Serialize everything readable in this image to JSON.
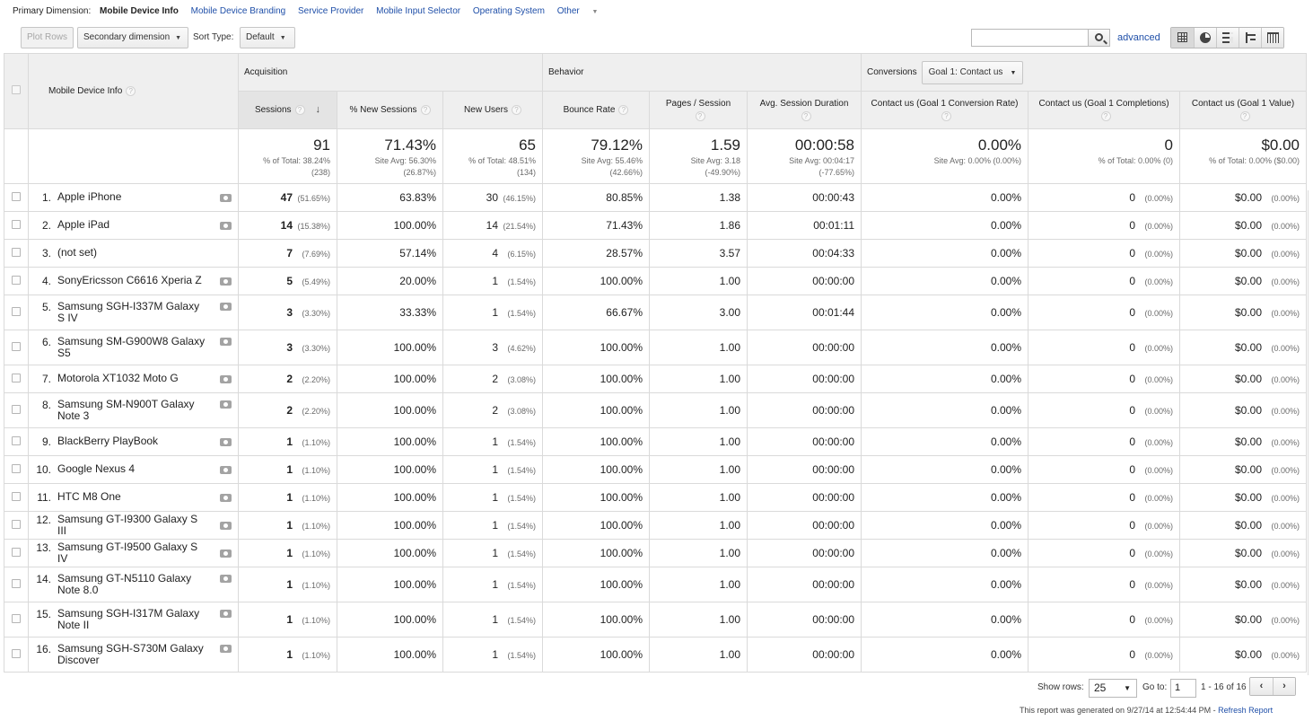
{
  "primary_dimension": {
    "label": "Primary Dimension:",
    "current": "Mobile Device Info",
    "options": [
      "Mobile Device Branding",
      "Service Provider",
      "Mobile Input Selector",
      "Operating System",
      "Other"
    ]
  },
  "toolbar": {
    "plot_rows": "Plot Rows",
    "secondary_dimension": "Secondary dimension",
    "sort_type_label": "Sort Type:",
    "sort_type_value": "Default",
    "search_value": "",
    "advanced": "advanced",
    "view_icons": [
      "table-view-icon",
      "pie-view-icon",
      "performance-view-icon",
      "comparison-view-icon",
      "pivot-view-icon"
    ]
  },
  "headers": {
    "dimension": "Mobile Device Info",
    "groups": {
      "acquisition": "Acquisition",
      "behavior": "Behavior",
      "conversions": "Conversions",
      "goal_select": "Goal 1: Contact us"
    },
    "columns": [
      "Sessions",
      "% New Sessions",
      "New Users",
      "Bounce Rate",
      "Pages / Session",
      "Avg. Session Duration",
      "Contact us (Goal 1 Conversion Rate)",
      "Contact us (Goal 1 Completions)",
      "Contact us (Goal 1 Value)"
    ]
  },
  "totals": [
    {
      "value": "91",
      "line1": "% of Total: 38.24%",
      "line2": "(238)"
    },
    {
      "value": "71.43%",
      "line1": "Site Avg: 56.30%",
      "line2": "(26.87%)"
    },
    {
      "value": "65",
      "line1": "% of Total: 48.51%",
      "line2": "(134)"
    },
    {
      "value": "79.12%",
      "line1": "Site Avg: 55.46%",
      "line2": "(42.66%)"
    },
    {
      "value": "1.59",
      "line1": "Site Avg: 3.18",
      "line2": "(-49.90%)"
    },
    {
      "value": "00:00:58",
      "line1": "Site Avg: 00:04:17",
      "line2": "(-77.65%)"
    },
    {
      "value": "0.00%",
      "line1": "Site Avg: 0.00% (0.00%)",
      "line2": ""
    },
    {
      "value": "0",
      "line1": "% of Total: 0.00% (0)",
      "line2": ""
    },
    {
      "value": "$0.00",
      "line1": "% of Total: 0.00% ($0.00)",
      "line2": ""
    }
  ],
  "rows": [
    {
      "idx": "1.",
      "name": "Apple iPhone",
      "cam": true,
      "sessions": "47",
      "sessions_pct": "(51.65%)",
      "new_sessions": "63.83%",
      "new_users": "30",
      "new_users_pct": "(46.15%)",
      "bounce": "80.85%",
      "pages": "1.38",
      "duration": "00:00:43",
      "conv_rate": "0.00%",
      "completions": "0",
      "completions_pct": "(0.00%)",
      "value": "$0.00",
      "value_pct": "(0.00%)"
    },
    {
      "idx": "2.",
      "name": "Apple iPad",
      "cam": true,
      "sessions": "14",
      "sessions_pct": "(15.38%)",
      "new_sessions": "100.00%",
      "new_users": "14",
      "new_users_pct": "(21.54%)",
      "bounce": "71.43%",
      "pages": "1.86",
      "duration": "00:01:11",
      "conv_rate": "0.00%",
      "completions": "0",
      "completions_pct": "(0.00%)",
      "value": "$0.00",
      "value_pct": "(0.00%)"
    },
    {
      "idx": "3.",
      "name": "(not set)",
      "cam": false,
      "sessions": "7",
      "sessions_pct": "(7.69%)",
      "new_sessions": "57.14%",
      "new_users": "4",
      "new_users_pct": "(6.15%)",
      "bounce": "28.57%",
      "pages": "3.57",
      "duration": "00:04:33",
      "conv_rate": "0.00%",
      "completions": "0",
      "completions_pct": "(0.00%)",
      "value": "$0.00",
      "value_pct": "(0.00%)"
    },
    {
      "idx": "4.",
      "name": "SonyEricsson C6616 Xperia Z",
      "cam": true,
      "sessions": "5",
      "sessions_pct": "(5.49%)",
      "new_sessions": "20.00%",
      "new_users": "1",
      "new_users_pct": "(1.54%)",
      "bounce": "100.00%",
      "pages": "1.00",
      "duration": "00:00:00",
      "conv_rate": "0.00%",
      "completions": "0",
      "completions_pct": "(0.00%)",
      "value": "$0.00",
      "value_pct": "(0.00%)"
    },
    {
      "idx": "5.",
      "name": "Samsung SGH-I337M Galaxy S IV",
      "cam": true,
      "sessions": "3",
      "sessions_pct": "(3.30%)",
      "new_sessions": "33.33%",
      "new_users": "1",
      "new_users_pct": "(1.54%)",
      "bounce": "66.67%",
      "pages": "3.00",
      "duration": "00:01:44",
      "conv_rate": "0.00%",
      "completions": "0",
      "completions_pct": "(0.00%)",
      "value": "$0.00",
      "value_pct": "(0.00%)"
    },
    {
      "idx": "6.",
      "name": "Samsung SM-G900W8 Galaxy S5",
      "cam": true,
      "sessions": "3",
      "sessions_pct": "(3.30%)",
      "new_sessions": "100.00%",
      "new_users": "3",
      "new_users_pct": "(4.62%)",
      "bounce": "100.00%",
      "pages": "1.00",
      "duration": "00:00:00",
      "conv_rate": "0.00%",
      "completions": "0",
      "completions_pct": "(0.00%)",
      "value": "$0.00",
      "value_pct": "(0.00%)"
    },
    {
      "idx": "7.",
      "name": "Motorola XT1032 Moto G",
      "cam": true,
      "sessions": "2",
      "sessions_pct": "(2.20%)",
      "new_sessions": "100.00%",
      "new_users": "2",
      "new_users_pct": "(3.08%)",
      "bounce": "100.00%",
      "pages": "1.00",
      "duration": "00:00:00",
      "conv_rate": "0.00%",
      "completions": "0",
      "completions_pct": "(0.00%)",
      "value": "$0.00",
      "value_pct": "(0.00%)"
    },
    {
      "idx": "8.",
      "name": "Samsung SM-N900T Galaxy Note 3",
      "cam": true,
      "sessions": "2",
      "sessions_pct": "(2.20%)",
      "new_sessions": "100.00%",
      "new_users": "2",
      "new_users_pct": "(3.08%)",
      "bounce": "100.00%",
      "pages": "1.00",
      "duration": "00:00:00",
      "conv_rate": "0.00%",
      "completions": "0",
      "completions_pct": "(0.00%)",
      "value": "$0.00",
      "value_pct": "(0.00%)"
    },
    {
      "idx": "9.",
      "name": "BlackBerry PlayBook",
      "cam": true,
      "sessions": "1",
      "sessions_pct": "(1.10%)",
      "new_sessions": "100.00%",
      "new_users": "1",
      "new_users_pct": "(1.54%)",
      "bounce": "100.00%",
      "pages": "1.00",
      "duration": "00:00:00",
      "conv_rate": "0.00%",
      "completions": "0",
      "completions_pct": "(0.00%)",
      "value": "$0.00",
      "value_pct": "(0.00%)"
    },
    {
      "idx": "10.",
      "name": "Google Nexus 4",
      "cam": true,
      "sessions": "1",
      "sessions_pct": "(1.10%)",
      "new_sessions": "100.00%",
      "new_users": "1",
      "new_users_pct": "(1.54%)",
      "bounce": "100.00%",
      "pages": "1.00",
      "duration": "00:00:00",
      "conv_rate": "0.00%",
      "completions": "0",
      "completions_pct": "(0.00%)",
      "value": "$0.00",
      "value_pct": "(0.00%)"
    },
    {
      "idx": "11.",
      "name": "HTC M8 One",
      "cam": true,
      "sessions": "1",
      "sessions_pct": "(1.10%)",
      "new_sessions": "100.00%",
      "new_users": "1",
      "new_users_pct": "(1.54%)",
      "bounce": "100.00%",
      "pages": "1.00",
      "duration": "00:00:00",
      "conv_rate": "0.00%",
      "completions": "0",
      "completions_pct": "(0.00%)",
      "value": "$0.00",
      "value_pct": "(0.00%)"
    },
    {
      "idx": "12.",
      "name": "Samsung GT-I9300 Galaxy S III",
      "cam": true,
      "sessions": "1",
      "sessions_pct": "(1.10%)",
      "new_sessions": "100.00%",
      "new_users": "1",
      "new_users_pct": "(1.54%)",
      "bounce": "100.00%",
      "pages": "1.00",
      "duration": "00:00:00",
      "conv_rate": "0.00%",
      "completions": "0",
      "completions_pct": "(0.00%)",
      "value": "$0.00",
      "value_pct": "(0.00%)"
    },
    {
      "idx": "13.",
      "name": "Samsung GT-I9500 Galaxy S IV",
      "cam": true,
      "sessions": "1",
      "sessions_pct": "(1.10%)",
      "new_sessions": "100.00%",
      "new_users": "1",
      "new_users_pct": "(1.54%)",
      "bounce": "100.00%",
      "pages": "1.00",
      "duration": "00:00:00",
      "conv_rate": "0.00%",
      "completions": "0",
      "completions_pct": "(0.00%)",
      "value": "$0.00",
      "value_pct": "(0.00%)"
    },
    {
      "idx": "14.",
      "name": "Samsung GT-N5110 Galaxy Note 8.0",
      "cam": true,
      "sessions": "1",
      "sessions_pct": "(1.10%)",
      "new_sessions": "100.00%",
      "new_users": "1",
      "new_users_pct": "(1.54%)",
      "bounce": "100.00%",
      "pages": "1.00",
      "duration": "00:00:00",
      "conv_rate": "0.00%",
      "completions": "0",
      "completions_pct": "(0.00%)",
      "value": "$0.00",
      "value_pct": "(0.00%)"
    },
    {
      "idx": "15.",
      "name": "Samsung SGH-I317M Galaxy Note II",
      "cam": true,
      "sessions": "1",
      "sessions_pct": "(1.10%)",
      "new_sessions": "100.00%",
      "new_users": "1",
      "new_users_pct": "(1.54%)",
      "bounce": "100.00%",
      "pages": "1.00",
      "duration": "00:00:00",
      "conv_rate": "0.00%",
      "completions": "0",
      "completions_pct": "(0.00%)",
      "value": "$0.00",
      "value_pct": "(0.00%)"
    },
    {
      "idx": "16.",
      "name": "Samsung SGH-S730M Galaxy Discover",
      "cam": true,
      "sessions": "1",
      "sessions_pct": "(1.10%)",
      "new_sessions": "100.00%",
      "new_users": "1",
      "new_users_pct": "(1.54%)",
      "bounce": "100.00%",
      "pages": "1.00",
      "duration": "00:00:00",
      "conv_rate": "0.00%",
      "completions": "0",
      "completions_pct": "(0.00%)",
      "value": "$0.00",
      "value_pct": "(0.00%)"
    }
  ],
  "footer": {
    "show_rows_label": "Show rows:",
    "show_rows_value": "25",
    "goto_label": "Go to:",
    "goto_value": "1",
    "range": "1 - 16 of 16",
    "prev": "‹",
    "next": "›",
    "generated": "This report was generated on 9/27/14 at 12:54:44 PM -",
    "refresh": "Refresh Report"
  },
  "colors": {
    "link": "#1f4fa8",
    "header_bg": "#efefef",
    "border": "#dadada"
  }
}
